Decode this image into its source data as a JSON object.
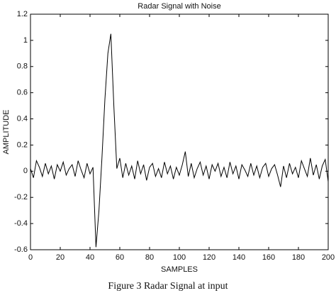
{
  "chart_data": {
    "type": "line",
    "title": "Radar Signal with Noise",
    "xlabel": "SAMPLES",
    "ylabel": "AMPLITUDE",
    "caption": "Figure 3 Radar Signal at input",
    "x": [
      0,
      2,
      4,
      6,
      8,
      10,
      12,
      14,
      16,
      18,
      20,
      22,
      24,
      26,
      28,
      30,
      32,
      34,
      36,
      38,
      40,
      42,
      44,
      46,
      48,
      50,
      52,
      54,
      56,
      58,
      60,
      62,
      64,
      66,
      68,
      70,
      72,
      74,
      76,
      78,
      80,
      82,
      84,
      86,
      88,
      90,
      92,
      94,
      96,
      98,
      100,
      102,
      104,
      106,
      108,
      110,
      112,
      114,
      116,
      118,
      120,
      122,
      124,
      126,
      128,
      130,
      132,
      134,
      136,
      138,
      140,
      142,
      144,
      146,
      148,
      150,
      152,
      154,
      156,
      158,
      160,
      162,
      164,
      166,
      168,
      170,
      172,
      174,
      176,
      178,
      180,
      182,
      184,
      186,
      188,
      190,
      192,
      194,
      196,
      198,
      200
    ],
    "series": [
      {
        "color": "#000000",
        "values": [
          0.02,
          -0.05,
          0.08,
          0.03,
          -0.04,
          0.06,
          -0.02,
          0.04,
          -0.06,
          0.05,
          0.0,
          0.07,
          -0.03,
          0.02,
          0.05,
          -0.04,
          0.08,
          0.01,
          -0.05,
          0.06,
          -0.02,
          0.03,
          -0.58,
          -0.3,
          0.1,
          0.55,
          0.9,
          1.05,
          0.5,
          0.02,
          0.1,
          -0.05,
          0.06,
          -0.03,
          0.04,
          -0.06,
          0.08,
          -0.02,
          0.05,
          -0.07,
          0.03,
          0.06,
          -0.04,
          0.02,
          -0.05,
          0.07,
          -0.02,
          0.04,
          -0.06,
          0.03,
          -0.03,
          0.05,
          0.15,
          -0.04,
          0.06,
          -0.05,
          0.02,
          0.07,
          -0.03,
          0.04,
          -0.06,
          0.05,
          0.0,
          0.06,
          -0.04,
          0.03,
          -0.05,
          0.07,
          -0.02,
          0.04,
          -0.06,
          0.05,
          0.01,
          -0.04,
          0.06,
          -0.03,
          0.04,
          -0.05,
          0.03,
          0.06,
          -0.04,
          0.02,
          0.05,
          -0.03,
          -0.12,
          0.04,
          -0.05,
          0.06,
          -0.02,
          0.03,
          -0.05,
          0.08,
          0.02,
          -0.04,
          0.1,
          -0.03,
          0.05,
          -0.06,
          0.04,
          0.09,
          -0.08
        ]
      }
    ],
    "xlim": [
      0,
      200
    ],
    "xticks": [
      0,
      20,
      40,
      60,
      80,
      100,
      120,
      140,
      160,
      180,
      200
    ],
    "ylim": [
      -0.6,
      1.2
    ],
    "yticks": [
      -0.6,
      -0.4,
      -0.2,
      0,
      0.2,
      0.4,
      0.6,
      0.8,
      1,
      1.2
    ]
  }
}
